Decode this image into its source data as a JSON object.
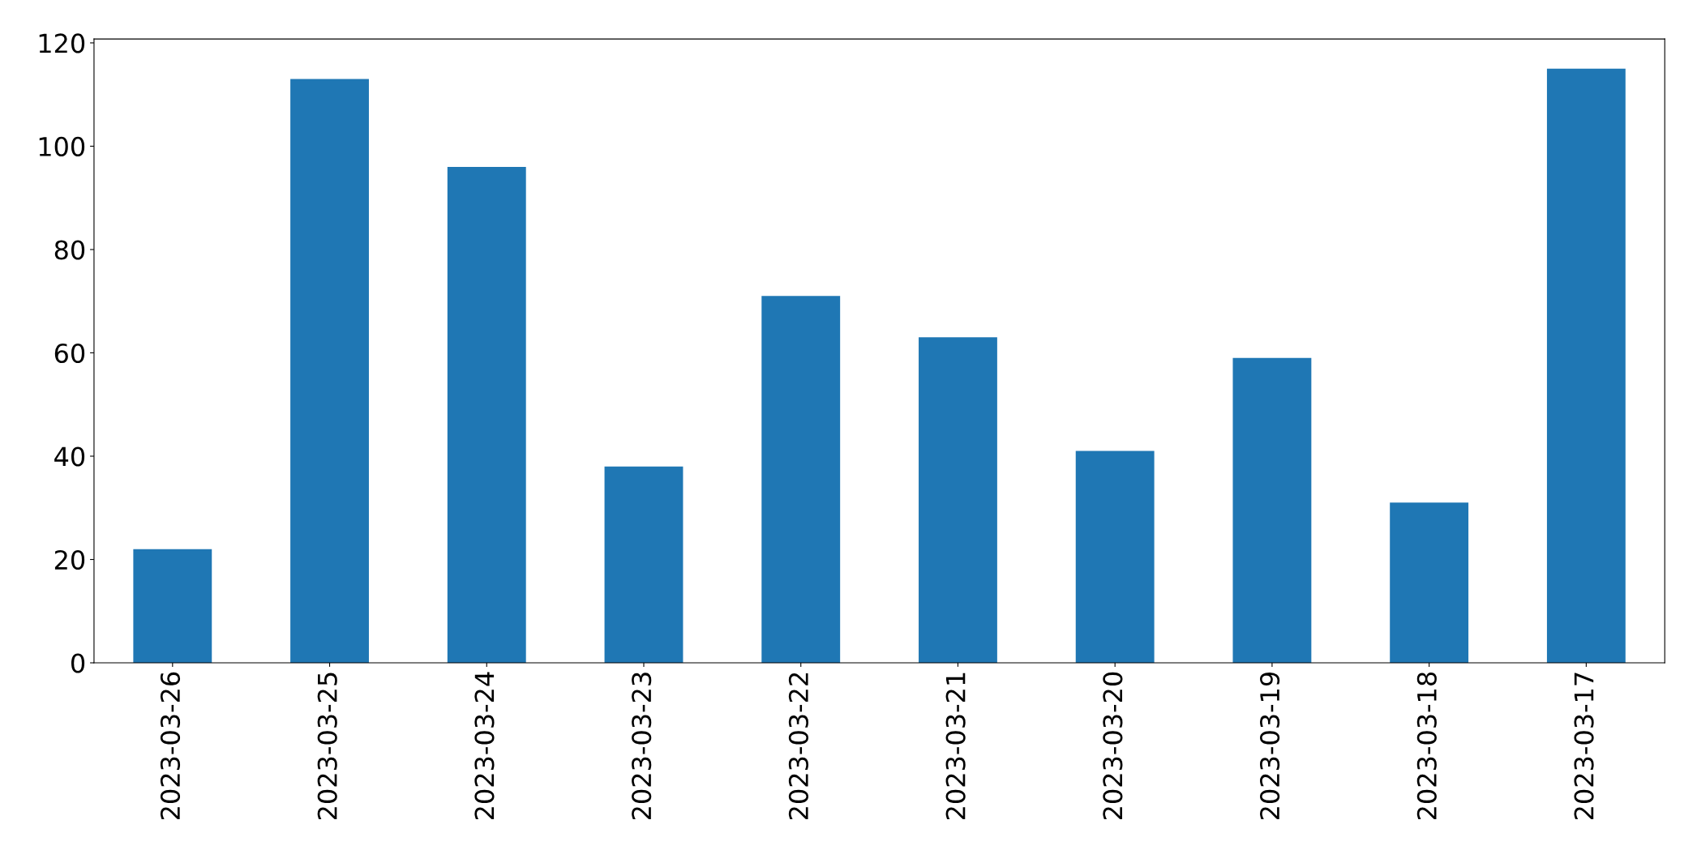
{
  "chart_data": {
    "type": "bar",
    "categories": [
      "2023-03-26",
      "2023-03-25",
      "2023-03-24",
      "2023-03-23",
      "2023-03-22",
      "2023-03-21",
      "2023-03-20",
      "2023-03-19",
      "2023-03-18",
      "2023-03-17"
    ],
    "values": [
      22,
      113,
      96,
      38,
      71,
      63,
      41,
      59,
      31,
      115
    ],
    "color": "#1f77b4",
    "ylim": [
      0,
      120.75
    ],
    "yticks": [
      0,
      20,
      40,
      60,
      80,
      100,
      120
    ],
    "grid": false
  }
}
